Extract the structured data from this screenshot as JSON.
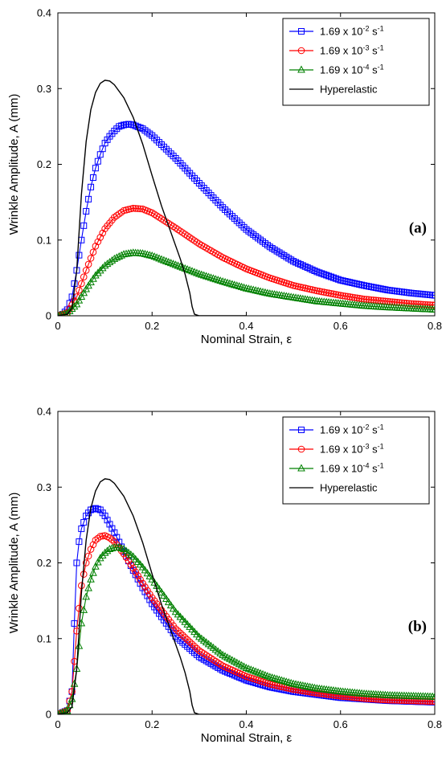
{
  "chart_data": [
    {
      "type": "line",
      "panel_label": "(a)",
      "xlabel": "Nominal Strain, ε",
      "ylabel": "Wrinkle Amplitude, A (mm)",
      "xlim": [
        0,
        0.8
      ],
      "ylim": [
        0,
        0.4
      ],
      "xticks": [
        "0",
        "0.2",
        "0.4",
        "0.6",
        "0.8"
      ],
      "yticks": [
        "0",
        "0.1",
        "0.2",
        "0.3",
        "0.4"
      ],
      "grid": false,
      "legend_position": "top-right",
      "series": [
        {
          "name": "1.69 x 10⁻² s⁻¹",
          "color": "#0000ff",
          "marker": "square",
          "x": [
            0,
            0.01,
            0.02,
            0.03,
            0.04,
            0.05,
            0.06,
            0.07,
            0.08,
            0.09,
            0.1,
            0.11,
            0.12,
            0.13,
            0.14,
            0.15,
            0.16,
            0.18,
            0.2,
            0.25,
            0.3,
            0.35,
            0.4,
            0.45,
            0.5,
            0.55,
            0.6,
            0.65,
            0.7,
            0.75,
            0.8
          ],
          "y": [
            0,
            0.002,
            0.008,
            0.025,
            0.06,
            0.1,
            0.138,
            0.17,
            0.195,
            0.213,
            0.228,
            0.237,
            0.244,
            0.25,
            0.252,
            0.253,
            0.252,
            0.247,
            0.238,
            0.208,
            0.175,
            0.143,
            0.114,
            0.091,
            0.072,
            0.058,
            0.047,
            0.04,
            0.034,
            0.03,
            0.027
          ]
        },
        {
          "name": "1.69 x 10⁻³ s⁻¹",
          "color": "#ff0000",
          "marker": "circle",
          "x": [
            0,
            0.02,
            0.04,
            0.06,
            0.08,
            0.1,
            0.12,
            0.14,
            0.16,
            0.18,
            0.2,
            0.25,
            0.3,
            0.35,
            0.4,
            0.45,
            0.5,
            0.55,
            0.6,
            0.65,
            0.7,
            0.75,
            0.8
          ],
          "y": [
            0,
            0.004,
            0.025,
            0.06,
            0.092,
            0.115,
            0.13,
            0.139,
            0.142,
            0.141,
            0.136,
            0.116,
            0.095,
            0.077,
            0.062,
            0.05,
            0.04,
            0.033,
            0.027,
            0.022,
            0.019,
            0.016,
            0.014
          ]
        },
        {
          "name": "1.69 x 10⁻⁴ s⁻¹",
          "color": "#008000",
          "marker": "triangle",
          "x": [
            0,
            0.02,
            0.04,
            0.06,
            0.08,
            0.1,
            0.12,
            0.14,
            0.16,
            0.18,
            0.2,
            0.25,
            0.3,
            0.35,
            0.4,
            0.45,
            0.5,
            0.55,
            0.6,
            0.65,
            0.7,
            0.75,
            0.8
          ],
          "y": [
            0,
            0.003,
            0.015,
            0.035,
            0.053,
            0.066,
            0.075,
            0.081,
            0.083,
            0.082,
            0.079,
            0.067,
            0.055,
            0.045,
            0.036,
            0.029,
            0.024,
            0.019,
            0.016,
            0.013,
            0.011,
            0.0095,
            0.008
          ]
        },
        {
          "name": "Hyperelastic",
          "color": "#000000",
          "marker": "none",
          "x": [
            0,
            0.02,
            0.03,
            0.04,
            0.05,
            0.06,
            0.07,
            0.08,
            0.09,
            0.1,
            0.11,
            0.12,
            0.14,
            0.16,
            0.18,
            0.2,
            0.22,
            0.24,
            0.26,
            0.27,
            0.28,
            0.285,
            0.29,
            0.3,
            0.35,
            0.4
          ],
          "y": [
            0,
            0.002,
            0.01,
            0.06,
            0.16,
            0.23,
            0.272,
            0.295,
            0.307,
            0.311,
            0.31,
            0.305,
            0.288,
            0.262,
            0.227,
            0.185,
            0.145,
            0.11,
            0.075,
            0.055,
            0.03,
            0.012,
            0.002,
            0,
            0,
            0
          ]
        }
      ]
    },
    {
      "type": "line",
      "panel_label": "(b)",
      "xlabel": "Nominal Strain, ε",
      "ylabel": "Wrinkle Amplitude, A (mm)",
      "xlim": [
        0,
        0.8
      ],
      "ylim": [
        0,
        0.4
      ],
      "xticks": [
        "0",
        "0.2",
        "0.4",
        "0.6",
        "0.8"
      ],
      "yticks": [
        "0",
        "0.1",
        "0.2",
        "0.3",
        "0.4"
      ],
      "grid": false,
      "legend_position": "top-right",
      "series": [
        {
          "name": "1.69 x 10⁻² s⁻¹",
          "color": "#0000ff",
          "marker": "square",
          "x": [
            0,
            0.02,
            0.03,
            0.035,
            0.04,
            0.045,
            0.05,
            0.06,
            0.07,
            0.08,
            0.09,
            0.1,
            0.12,
            0.14,
            0.16,
            0.18,
            0.2,
            0.25,
            0.3,
            0.35,
            0.4,
            0.45,
            0.5,
            0.55,
            0.6,
            0.65,
            0.7,
            0.75,
            0.8
          ],
          "y": [
            0,
            0.005,
            0.03,
            0.12,
            0.2,
            0.228,
            0.245,
            0.262,
            0.27,
            0.272,
            0.27,
            0.262,
            0.24,
            0.215,
            0.19,
            0.167,
            0.146,
            0.103,
            0.076,
            0.058,
            0.045,
            0.036,
            0.03,
            0.026,
            0.022,
            0.02,
            0.018,
            0.017,
            0.016
          ]
        },
        {
          "name": "1.69 x 10⁻³ s⁻¹",
          "color": "#ff0000",
          "marker": "circle",
          "x": [
            0,
            0.02,
            0.03,
            0.04,
            0.05,
            0.06,
            0.07,
            0.08,
            0.09,
            0.1,
            0.11,
            0.12,
            0.14,
            0.16,
            0.18,
            0.2,
            0.25,
            0.3,
            0.35,
            0.4,
            0.45,
            0.5,
            0.55,
            0.6,
            0.65,
            0.7,
            0.75,
            0.8
          ],
          "y": [
            0,
            0.005,
            0.03,
            0.11,
            0.17,
            0.2,
            0.218,
            0.23,
            0.235,
            0.236,
            0.233,
            0.228,
            0.212,
            0.193,
            0.173,
            0.154,
            0.113,
            0.084,
            0.064,
            0.05,
            0.04,
            0.033,
            0.028,
            0.024,
            0.021,
            0.019,
            0.018,
            0.017
          ]
        },
        {
          "name": "1.69 x 10⁻⁴ s⁻¹",
          "color": "#008000",
          "marker": "triangle",
          "x": [
            0,
            0.02,
            0.03,
            0.04,
            0.05,
            0.06,
            0.07,
            0.08,
            0.09,
            0.1,
            0.11,
            0.12,
            0.13,
            0.14,
            0.16,
            0.18,
            0.2,
            0.25,
            0.3,
            0.35,
            0.4,
            0.45,
            0.5,
            0.55,
            0.6,
            0.65,
            0.7,
            0.75,
            0.8
          ],
          "y": [
            0,
            0.004,
            0.02,
            0.06,
            0.12,
            0.155,
            0.178,
            0.195,
            0.206,
            0.213,
            0.218,
            0.22,
            0.22,
            0.218,
            0.208,
            0.194,
            0.178,
            0.135,
            0.102,
            0.078,
            0.061,
            0.049,
            0.04,
            0.034,
            0.03,
            0.027,
            0.025,
            0.024,
            0.023
          ]
        },
        {
          "name": "Hyperelastic",
          "color": "#000000",
          "marker": "none",
          "x": [
            0,
            0.02,
            0.03,
            0.04,
            0.05,
            0.06,
            0.07,
            0.08,
            0.09,
            0.1,
            0.11,
            0.12,
            0.14,
            0.16,
            0.18,
            0.2,
            0.22,
            0.24,
            0.26,
            0.27,
            0.28,
            0.285,
            0.29,
            0.3,
            0.35,
            0.4
          ],
          "y": [
            0,
            0.002,
            0.01,
            0.06,
            0.16,
            0.23,
            0.272,
            0.295,
            0.307,
            0.311,
            0.31,
            0.305,
            0.288,
            0.262,
            0.227,
            0.185,
            0.145,
            0.11,
            0.075,
            0.055,
            0.03,
            0.012,
            0.002,
            0,
            0,
            0
          ]
        }
      ]
    }
  ]
}
